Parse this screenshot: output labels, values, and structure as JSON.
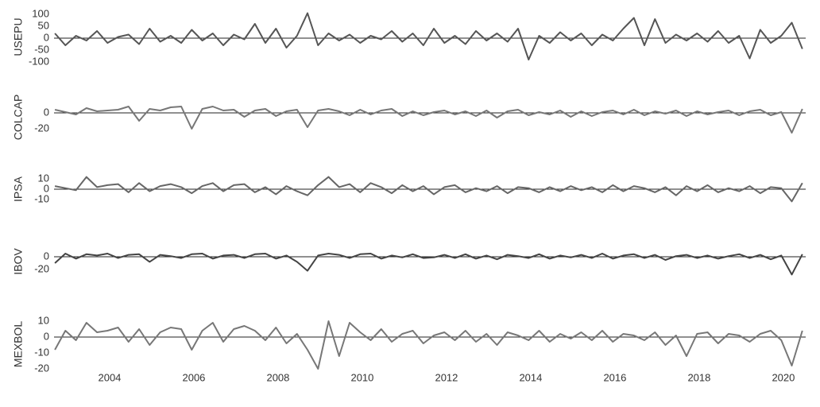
{
  "chart_data": {
    "type": "line",
    "x": [
      2002.7,
      2002.95,
      2003.2,
      2003.45,
      2003.7,
      2003.95,
      2004.2,
      2004.45,
      2004.7,
      2004.95,
      2005.2,
      2005.45,
      2005.7,
      2005.95,
      2006.2,
      2006.45,
      2006.7,
      2006.95,
      2007.2,
      2007.45,
      2007.7,
      2007.95,
      2008.2,
      2008.45,
      2008.7,
      2008.95,
      2009.2,
      2009.45,
      2009.7,
      2009.95,
      2010.2,
      2010.45,
      2010.7,
      2010.95,
      2011.2,
      2011.45,
      2011.7,
      2011.95,
      2012.2,
      2012.45,
      2012.7,
      2012.95,
      2013.2,
      2013.45,
      2013.7,
      2013.95,
      2014.2,
      2014.45,
      2014.7,
      2014.95,
      2015.2,
      2015.45,
      2015.7,
      2015.95,
      2016.2,
      2016.45,
      2016.7,
      2016.95,
      2017.2,
      2017.45,
      2017.7,
      2017.95,
      2018.2,
      2018.45,
      2018.7,
      2018.95,
      2019.2,
      2019.45,
      2019.7,
      2019.95,
      2020.2,
      2020.45
    ],
    "xlim": [
      2002.68,
      2020.53
    ],
    "xticks": [
      2004,
      2006,
      2008,
      2010,
      2012,
      2014,
      2016,
      2018,
      2020
    ],
    "zeroline": true,
    "panels": [
      {
        "ylabel": "USEPU",
        "color": "#555555",
        "ylim": [
          -110,
          120
        ],
        "yticks": [
          -100,
          -50,
          0,
          50,
          100
        ],
        "values": [
          20,
          -30,
          10,
          -10,
          30,
          -20,
          5,
          15,
          -25,
          40,
          -15,
          10,
          -20,
          35,
          -10,
          20,
          -30,
          15,
          -5,
          60,
          -20,
          40,
          -40,
          10,
          105,
          -30,
          20,
          -10,
          15,
          -20,
          10,
          -5,
          30,
          -15,
          20,
          -30,
          40,
          -20,
          10,
          -25,
          30,
          -10,
          20,
          -15,
          40,
          -90,
          10,
          -20,
          25,
          -10,
          20,
          -30,
          15,
          -10,
          40,
          85,
          -30,
          80,
          -20,
          15,
          -10,
          20,
          -15,
          30,
          -20,
          10,
          -85,
          35,
          -20,
          10,
          65,
          -45
        ]
      },
      {
        "ylabel": "COLCAP",
        "color": "#777777",
        "ylim": [
          -27,
          16
        ],
        "yticks": [
          -20,
          0
        ],
        "values": [
          4,
          1,
          -2,
          6,
          2,
          3,
          4,
          8,
          -10,
          5,
          3,
          7,
          8,
          -20,
          5,
          8,
          3,
          4,
          -5,
          3,
          5,
          -4,
          2,
          4,
          -18,
          3,
          5,
          2,
          -3,
          4,
          -2,
          3,
          5,
          -4,
          2,
          -3,
          1,
          3,
          -2,
          2,
          -4,
          3,
          -6,
          2,
          4,
          -3,
          1,
          -2,
          3,
          -5,
          2,
          -4,
          1,
          3,
          -2,
          4,
          -3,
          2,
          -1,
          3,
          -4,
          2,
          -2,
          1,
          3,
          -3,
          2,
          4,
          -3,
          1,
          -25,
          5
        ]
      },
      {
        "ylabel": "IPSA",
        "color": "#666666",
        "ylim": [
          -14,
          14
        ],
        "yticks": [
          -10,
          0,
          10
        ],
        "values": [
          3,
          1,
          -1,
          12,
          2,
          4,
          5,
          -3,
          6,
          -2,
          3,
          5,
          2,
          -4,
          3,
          6,
          -2,
          4,
          5,
          -3,
          2,
          -5,
          3,
          -2,
          -6,
          4,
          12,
          2,
          5,
          -3,
          6,
          2,
          -4,
          4,
          -2,
          3,
          -5,
          2,
          4,
          -3,
          1,
          -2,
          3,
          -4,
          2,
          1,
          -3,
          2,
          -2,
          3,
          -1,
          2,
          -3,
          4,
          -2,
          3,
          1,
          -3,
          2,
          -6,
          3,
          -2,
          4,
          -3,
          1,
          -2,
          3,
          -4,
          2,
          1,
          -12,
          6
        ]
      },
      {
        "ylabel": "IBOV",
        "color": "#444444",
        "ylim": [
          -30,
          15
        ],
        "yticks": [
          -20,
          0
        ],
        "values": [
          -10,
          5,
          -3,
          4,
          2,
          5,
          -2,
          3,
          4,
          -8,
          3,
          1,
          -2,
          4,
          5,
          -3,
          2,
          3,
          -2,
          4,
          5,
          -3,
          2,
          -8,
          -22,
          2,
          5,
          3,
          -2,
          4,
          5,
          -3,
          2,
          -1,
          4,
          -2,
          -1,
          3,
          -2,
          4,
          -3,
          2,
          -4,
          3,
          1,
          -2,
          4,
          -3,
          2,
          -1,
          3,
          -2,
          5,
          -3,
          2,
          4,
          -2,
          3,
          -5,
          1,
          3,
          -2,
          2,
          -3,
          1,
          4,
          -2,
          3,
          -4,
          2,
          -28,
          4
        ]
      },
      {
        "ylabel": "MEXBOL",
        "color": "#777777",
        "ylim": [
          -21,
          12
        ],
        "yticks": [
          -20,
          -10,
          0,
          10
        ],
        "values": [
          -8,
          4,
          -2,
          9,
          3,
          4,
          6,
          -3,
          5,
          -5,
          3,
          6,
          5,
          -8,
          4,
          9,
          -3,
          5,
          7,
          4,
          -2,
          6,
          -4,
          2,
          -8,
          -20,
          10,
          -12,
          9,
          3,
          -2,
          5,
          -3,
          2,
          4,
          -4,
          1,
          3,
          -2,
          4,
          -3,
          2,
          -5,
          3,
          1,
          -2,
          4,
          -3,
          2,
          -1,
          3,
          -2,
          4,
          -3,
          2,
          1,
          -2,
          3,
          -5,
          1,
          -12,
          2,
          3,
          -4,
          2,
          1,
          -3,
          2,
          4,
          -2,
          -18,
          4
        ]
      }
    ]
  }
}
